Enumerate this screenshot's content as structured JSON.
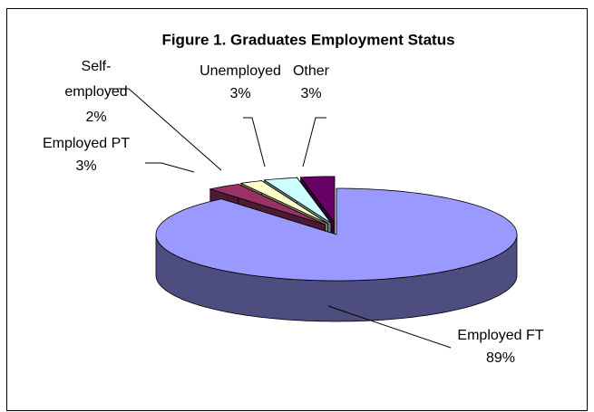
{
  "chart_data": {
    "type": "pie",
    "title": "Figure 1. Graduates Employment Status",
    "categories": [
      "Employed FT",
      "Employed PT",
      "Self-employed",
      "Unemployed",
      "Other"
    ],
    "values": [
      89,
      3,
      2,
      3,
      3
    ],
    "value_labels": [
      "89%",
      "3%",
      "2%",
      "3%",
      "3%"
    ],
    "colors": [
      "#9999ff",
      "#993366",
      "#ffffcc",
      "#ccffff",
      "#660066"
    ],
    "three_d": true
  }
}
